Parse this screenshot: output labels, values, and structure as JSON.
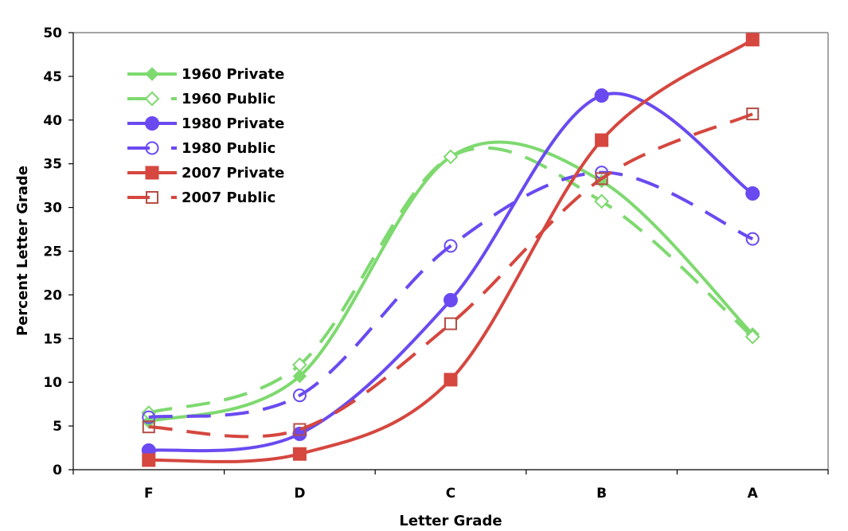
{
  "chart_data": {
    "type": "line",
    "title": "",
    "xlabel": "Letter Grade",
    "ylabel": "Percent Letter Grade",
    "categories": [
      "F",
      "D",
      "C",
      "B",
      "A"
    ],
    "ylim": [
      0,
      50
    ],
    "yticks": [
      0,
      5,
      10,
      15,
      20,
      25,
      30,
      35,
      40,
      45,
      50
    ],
    "grid": false,
    "legend_position": "upper-left-inside",
    "smooth": true,
    "series": [
      {
        "name": "1960 Private",
        "color": "#7ED96F",
        "dashed": false,
        "marker": "diamond-filled",
        "values": [
          5.5,
          10.7,
          35.8,
          33.0,
          15.5
        ]
      },
      {
        "name": "1960 Public",
        "color": "#7ED96F",
        "dashed": true,
        "marker": "diamond-open",
        "values": [
          6.5,
          12.0,
          35.8,
          30.7,
          15.2
        ]
      },
      {
        "name": "1980 Private",
        "color": "#6A4AF0",
        "dashed": false,
        "marker": "circle-filled",
        "values": [
          2.2,
          4.1,
          19.4,
          42.8,
          31.6
        ]
      },
      {
        "name": "1980 Public",
        "color": "#6A4AF0",
        "dashed": true,
        "marker": "circle-open",
        "values": [
          6.0,
          8.5,
          25.6,
          34.0,
          26.4
        ]
      },
      {
        "name": "2007 Private",
        "color": "#D5473F",
        "dashed": false,
        "marker": "square-filled",
        "values": [
          1.1,
          1.8,
          10.3,
          37.7,
          49.2
        ]
      },
      {
        "name": "2007 Public",
        "color": "#D5473F",
        "dashed": true,
        "marker": "square-open",
        "values": [
          4.9,
          4.6,
          16.7,
          33.3,
          40.7
        ]
      }
    ]
  }
}
